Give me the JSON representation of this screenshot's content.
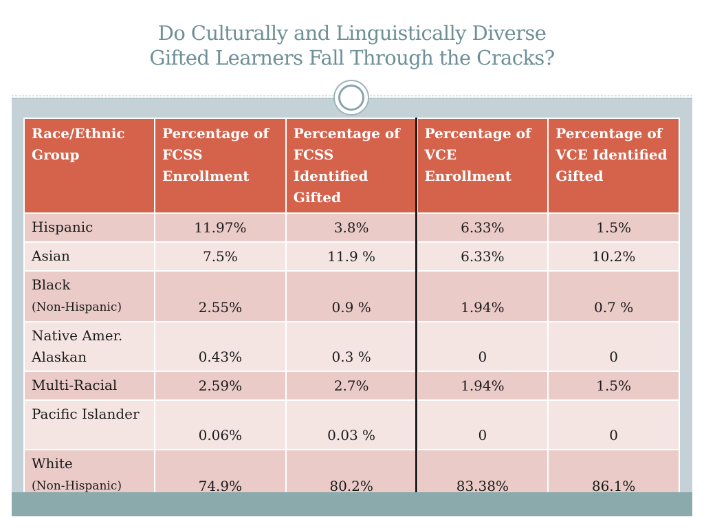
{
  "slide": {
    "title_line1": "Do Culturally and Linguistically Diverse",
    "title_line2": "Gifted Learners Fall Through the Cracks?"
  },
  "colors": {
    "title": "#6d8f97",
    "header_fill": "#d5624b",
    "row_dark": "#eacbc7",
    "row_light": "#f4e5e3",
    "frame": "#c4d1d7",
    "band": "#8aaaac"
  },
  "table": {
    "headers": [
      "Race/Ethnic Group",
      "Percentage of FCSS Enrollment",
      "Percentage of FCSS Identified Gifted",
      "Percentage of VCE Enrollment",
      "Percentage of VCE Identified Gifted"
    ],
    "rows": [
      {
        "label": "Hispanic",
        "sub": "",
        "values": [
          "11.97%",
          "3.8%",
          "6.33%",
          "1.5%"
        ]
      },
      {
        "label": "Asian",
        "sub": "",
        "values": [
          "7.5%",
          "11.9 %",
          "6.33%",
          "10.2%"
        ]
      },
      {
        "label": "Black",
        "sub": "(Non-Hispanic)",
        "values": [
          "2.55%",
          "0.9 %",
          "1.94%",
          "0.7 %"
        ]
      },
      {
        "label": "Native Amer. Alaskan",
        "sub": "",
        "values": [
          "0.43%",
          "0.3 %",
          "0",
          "0"
        ]
      },
      {
        "label": "Multi-Racial",
        "sub": "",
        "values": [
          "2.59%",
          "2.7%",
          "1.94%",
          "1.5%"
        ]
      },
      {
        "label": "Pacific Islander",
        "sub": "",
        "values": [
          "0.06%",
          "0.03 %",
          "0",
          "0"
        ]
      },
      {
        "label": "White",
        "sub": "(Non-Hispanic)",
        "values": [
          "74.9%",
          "80.2%",
          "83.38%",
          "86.1%"
        ]
      }
    ]
  }
}
